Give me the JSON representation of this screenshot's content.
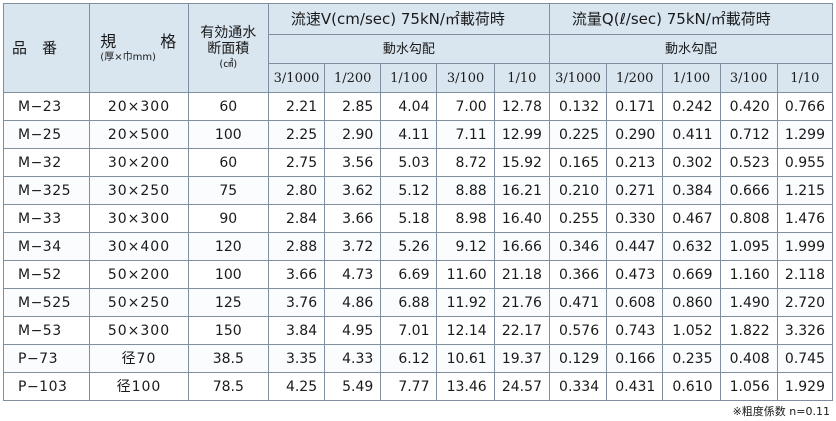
{
  "header": {
    "col_name": "品　番",
    "col_size_top_left": "規",
    "col_size_top_right": "格",
    "col_size_sub": "(厚×巾mm)",
    "col_area_line1": "有効通水",
    "col_area_line2": "断面積",
    "col_area_unit": "(㎠)",
    "velocity_group": "流速V(cm/sec) 75kN/㎡載荷時",
    "flow_group": "流量Q(ℓ/sec) 75kN/㎡載荷時",
    "gradient_label": "動水勾配",
    "gradients": [
      "3/1000",
      "1/200",
      "1/100",
      "3/100",
      "1/10"
    ]
  },
  "rows": [
    {
      "name": "M−23",
      "size": "20×300",
      "area": "60",
      "velocity": [
        "2.21",
        "2.85",
        "4.04",
        "7.00",
        "12.78"
      ],
      "flow": [
        "0.132",
        "0.171",
        "0.242",
        "0.420",
        "0.766"
      ]
    },
    {
      "name": "M−25",
      "size": "20×500",
      "area": "100",
      "velocity": [
        "2.25",
        "2.90",
        "4.11",
        "7.11",
        "12.99"
      ],
      "flow": [
        "0.225",
        "0.290",
        "0.411",
        "0.712",
        "1.299"
      ]
    },
    {
      "name": "M−32",
      "size": "30×200",
      "area": "60",
      "velocity": [
        "2.75",
        "3.56",
        "5.03",
        "8.72",
        "15.92"
      ],
      "flow": [
        "0.165",
        "0.213",
        "0.302",
        "0.523",
        "0.955"
      ]
    },
    {
      "name": "M−325",
      "size": "30×250",
      "area": "75",
      "velocity": [
        "2.80",
        "3.62",
        "5.12",
        "8.88",
        "16.21"
      ],
      "flow": [
        "0.210",
        "0.271",
        "0.384",
        "0.666",
        "1.215"
      ]
    },
    {
      "name": "M−33",
      "size": "30×300",
      "area": "90",
      "velocity": [
        "2.84",
        "3.66",
        "5.18",
        "8.98",
        "16.40"
      ],
      "flow": [
        "0.255",
        "0.330",
        "0.467",
        "0.808",
        "1.476"
      ]
    },
    {
      "name": "M−34",
      "size": "30×400",
      "area": "120",
      "velocity": [
        "2.88",
        "3.72",
        "5.26",
        "9.12",
        "16.66"
      ],
      "flow": [
        "0.346",
        "0.447",
        "0.632",
        "1.095",
        "1.999"
      ]
    },
    {
      "name": "M−52",
      "size": "50×200",
      "area": "100",
      "velocity": [
        "3.66",
        "4.73",
        "6.69",
        "11.60",
        "21.18"
      ],
      "flow": [
        "0.366",
        "0.473",
        "0.669",
        "1.160",
        "2.118"
      ]
    },
    {
      "name": "M−525",
      "size": "50×250",
      "area": "125",
      "velocity": [
        "3.76",
        "4.86",
        "6.88",
        "11.92",
        "21.76"
      ],
      "flow": [
        "0.471",
        "0.608",
        "0.860",
        "1.490",
        "2.720"
      ]
    },
    {
      "name": "M−53",
      "size": "50×300",
      "area": "150",
      "velocity": [
        "3.84",
        "4.95",
        "7.01",
        "12.14",
        "22.17"
      ],
      "flow": [
        "0.576",
        "0.743",
        "1.052",
        "1.822",
        "3.326"
      ]
    },
    {
      "name": "P−73",
      "size": "径70",
      "area": "38.5",
      "velocity": [
        "3.35",
        "4.33",
        "6.12",
        "10.61",
        "19.37"
      ],
      "flow": [
        "0.129",
        "0.166",
        "0.235",
        "0.408",
        "0.745"
      ]
    },
    {
      "name": "P−103",
      "size": "径100",
      "area": "78.5",
      "velocity": [
        "4.25",
        "5.49",
        "7.77",
        "13.46",
        "24.57"
      ],
      "flow": [
        "0.334",
        "0.431",
        "0.610",
        "1.056",
        "1.929"
      ]
    }
  ],
  "footnote": "※粗度係数 n=0.11"
}
